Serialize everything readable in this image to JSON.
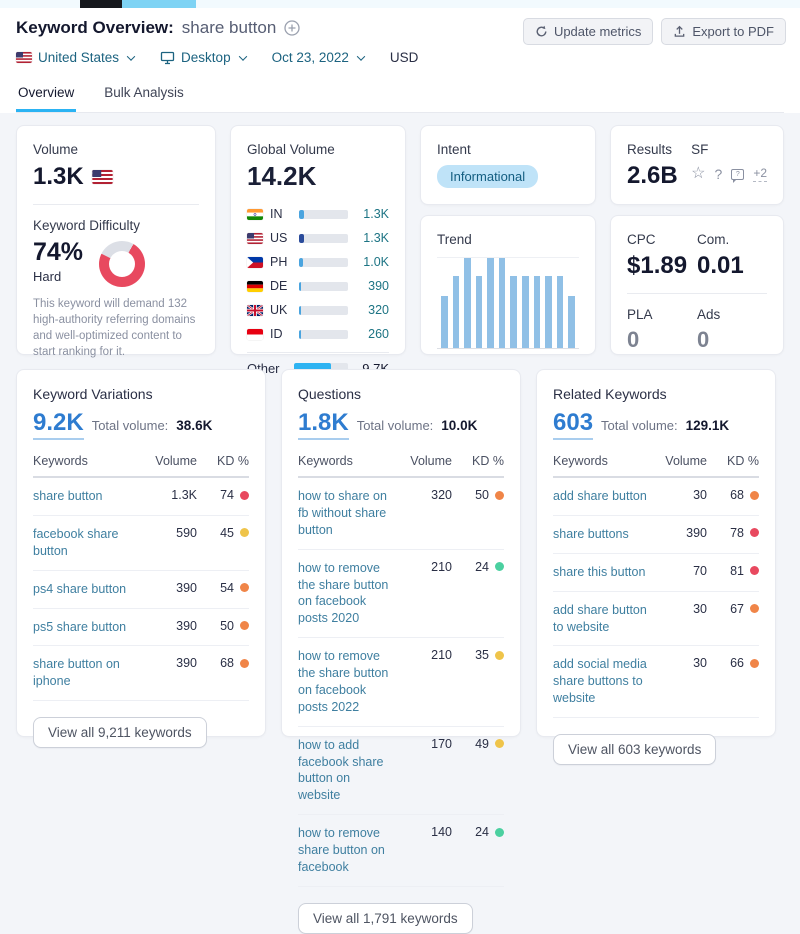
{
  "header": {
    "title": "Keyword Overview:",
    "keyword": "share button",
    "update_metrics": "Update metrics",
    "export_pdf": "Export to PDF"
  },
  "filters": {
    "country": "United States",
    "device": "Desktop",
    "date": "Oct 23, 2022",
    "currency": "USD"
  },
  "tabs": [
    {
      "label": "Overview"
    },
    {
      "label": "Bulk Analysis"
    }
  ],
  "volume_card": {
    "volume_label": "Volume",
    "volume": "1.3K",
    "kd_label": "Keyword Difficulty",
    "kd_percent": "74%",
    "kd_value": 74,
    "kd_color": "#e8495f",
    "kd_level": "Hard",
    "kd_description": "This keyword will demand 132 high-authority referring domains and well-optimized content to start ranking for it."
  },
  "global_volume_card": {
    "label": "Global Volume",
    "total": "14.2K",
    "rows": [
      {
        "country": "IN",
        "flag": "in",
        "value": "1.3K",
        "pct": 10,
        "bar_color": "#4aa4df"
      },
      {
        "country": "US",
        "flag": "us",
        "value": "1.3K",
        "pct": 10,
        "bar_color": "#2a4b9b"
      },
      {
        "country": "PH",
        "flag": "ph",
        "value": "1.0K",
        "pct": 8,
        "bar_color": "#4aa4df"
      },
      {
        "country": "DE",
        "flag": "de",
        "value": "390",
        "pct": 5,
        "bar_color": "#4aa4df"
      },
      {
        "country": "UK",
        "flag": "uk",
        "value": "320",
        "pct": 5,
        "bar_color": "#4aa4df"
      },
      {
        "country": "ID",
        "flag": "id",
        "value": "260",
        "pct": 4,
        "bar_color": "#4aa4df"
      }
    ],
    "other_label": "Other",
    "other_value": "9.7K",
    "other_pct": 68,
    "other_color": "#2eb3f2"
  },
  "intent_card": {
    "label": "Intent",
    "value": "Informational",
    "pill_bg": "#bfe3f8",
    "pill_text": "#135d80"
  },
  "trend_card": {
    "label": "Trend",
    "bar_color": "#90c0e6",
    "chart_data": {
      "type": "bar",
      "values_pct_of_max": [
        58,
        80,
        100,
        80,
        100,
        100,
        80,
        80,
        80,
        80,
        80,
        58
      ]
    }
  },
  "results_card": {
    "label": "Results",
    "value": "2.6B",
    "sf_label": "SF",
    "sf_more": "+2"
  },
  "cpc_card": {
    "cpc_label": "CPC",
    "cpc": "$1.89",
    "com_label": "Com.",
    "com": "0.01",
    "pla_label": "PLA",
    "pla": "0",
    "ads_label": "Ads",
    "ads": "0"
  },
  "table_headers": {
    "keywords": "Keywords",
    "volume": "Volume",
    "kd": "KD %"
  },
  "variations_card": {
    "title": "Keyword Variations",
    "count": "9.2K",
    "total_label": "Total volume:",
    "total": "38.6K",
    "rows": [
      {
        "keyword": "share button",
        "volume": "1.3K",
        "kd": "74",
        "kd_color": "#e8495f"
      },
      {
        "keyword": "facebook share button",
        "volume": "590",
        "kd": "45",
        "kd_color": "#efc44a"
      },
      {
        "keyword": "ps4 share button",
        "volume": "390",
        "kd": "54",
        "kd_color": "#f08548"
      },
      {
        "keyword": "ps5 share button",
        "volume": "390",
        "kd": "50",
        "kd_color": "#f08548"
      },
      {
        "keyword": "share button on iphone",
        "volume": "390",
        "kd": "68",
        "kd_color": "#f08548"
      }
    ],
    "view_all": "View all 9,211 keywords"
  },
  "questions_card": {
    "title": "Questions",
    "count": "1.8K",
    "total_label": "Total volume:",
    "total": "10.0K",
    "rows": [
      {
        "keyword": "how to share on fb without share button",
        "volume": "320",
        "kd": "50",
        "kd_color": "#f08548"
      },
      {
        "keyword": "how to remove the share button on facebook posts 2020",
        "volume": "210",
        "kd": "24",
        "kd_color": "#4bd0a0"
      },
      {
        "keyword": "how to remove the share button on facebook posts 2022",
        "volume": "210",
        "kd": "35",
        "kd_color": "#efc44a"
      },
      {
        "keyword": "how to add facebook share button on website",
        "volume": "170",
        "kd": "49",
        "kd_color": "#efc44a"
      },
      {
        "keyword": "how to remove share button on facebook",
        "volume": "140",
        "kd": "24",
        "kd_color": "#4bd0a0"
      }
    ],
    "view_all": "View all 1,791 keywords"
  },
  "related_card": {
    "title": "Related Keywords",
    "count": "603",
    "total_label": "Total volume:",
    "total": "129.1K",
    "rows": [
      {
        "keyword": "add share button",
        "volume": "30",
        "kd": "68",
        "kd_color": "#f08548"
      },
      {
        "keyword": "share buttons",
        "volume": "390",
        "kd": "78",
        "kd_color": "#e8495f"
      },
      {
        "keyword": "share this button",
        "volume": "70",
        "kd": "81",
        "kd_color": "#e8495f"
      },
      {
        "keyword": "add share button to website",
        "volume": "30",
        "kd": "67",
        "kd_color": "#f08548"
      },
      {
        "keyword": "add social media share buttons to website",
        "volume": "30",
        "kd": "66",
        "kd_color": "#f08548"
      }
    ],
    "view_all": "View all 603 keywords"
  }
}
